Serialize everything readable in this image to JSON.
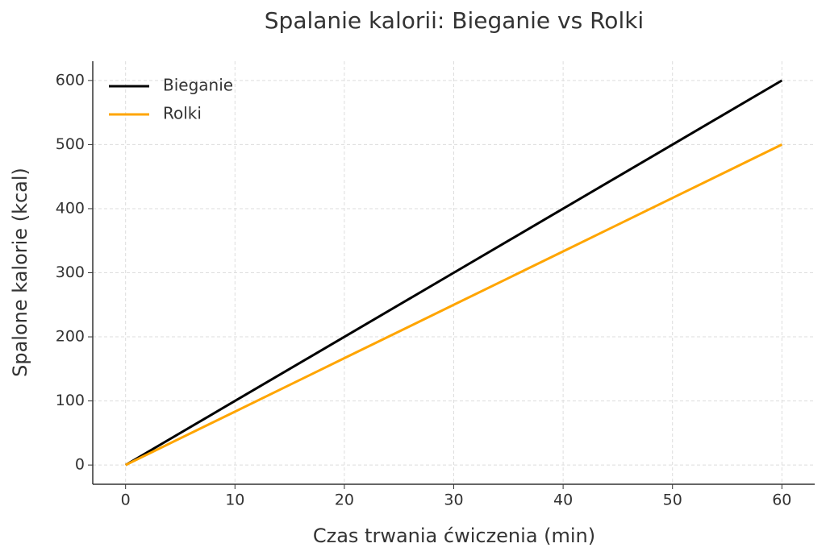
{
  "chart_data": {
    "type": "line",
    "title": "Spalanie kalorii: Bieganie vs Rolki",
    "x_label": "Czas trwania ćwiczenia (min)",
    "y_label": "Spalone kalorie (kcal)",
    "x": [
      0,
      10,
      20,
      30,
      40,
      50,
      60
    ],
    "series": [
      {
        "name": "Bieganie",
        "color": "#000000",
        "values": [
          0,
          100,
          200,
          300,
          400,
          500,
          600
        ]
      },
      {
        "name": "Rolki",
        "color": "#ffa500",
        "values": [
          0,
          83.3,
          166.7,
          250,
          333.3,
          416.7,
          500
        ]
      }
    ],
    "xlim": [
      -3,
      63
    ],
    "ylim": [
      -30,
      630
    ],
    "xticks": [
      0,
      10,
      20,
      30,
      40,
      50,
      60
    ],
    "yticks": [
      0,
      100,
      200,
      300,
      400,
      500,
      600
    ],
    "grid": true,
    "legend": "upper-left"
  }
}
